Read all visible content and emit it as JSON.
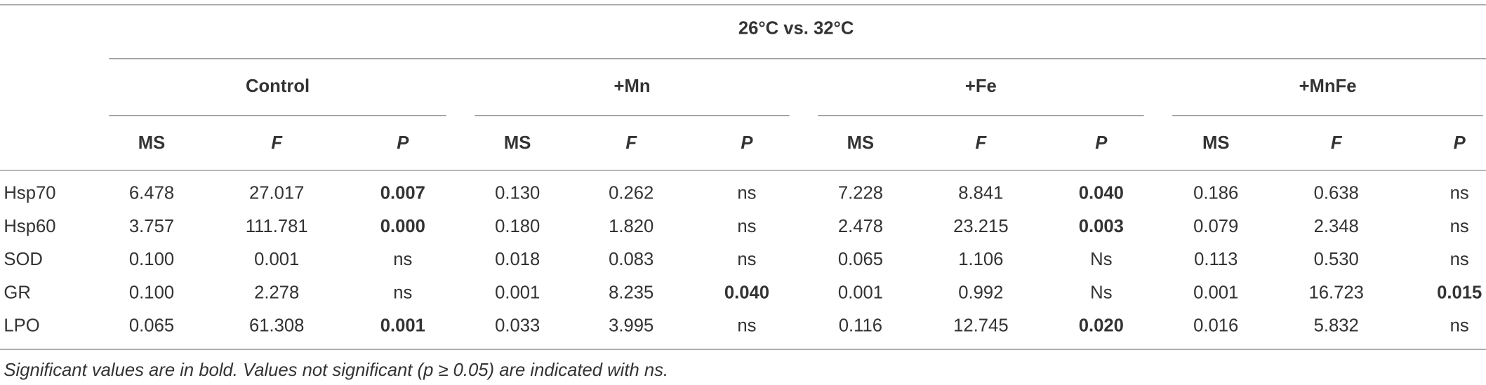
{
  "header": {
    "title": "26°C vs. 32°C"
  },
  "table": {
    "groups": [
      "Control",
      "+Mn",
      "+Fe",
      "+MnFe"
    ],
    "subheaders": [
      "MS",
      "F",
      "P"
    ],
    "rows": [
      {
        "label": "Hsp70",
        "cells": [
          "6.478",
          "27.017",
          {
            "text": "0.007",
            "bold": true
          },
          "0.130",
          "0.262",
          "ns",
          "7.228",
          "8.841",
          {
            "text": "0.040",
            "bold": true
          },
          "0.186",
          "0.638",
          "ns"
        ]
      },
      {
        "label": "Hsp60",
        "cells": [
          "3.757",
          "111.781",
          {
            "text": "0.000",
            "bold": true
          },
          "0.180",
          "1.820",
          "ns",
          "2.478",
          "23.215",
          {
            "text": "0.003",
            "bold": true
          },
          "0.079",
          "2.348",
          "ns"
        ]
      },
      {
        "label": "SOD",
        "cells": [
          "0.100",
          "0.001",
          "ns",
          "0.018",
          "0.083",
          "ns",
          "0.065",
          "1.106",
          "Ns",
          "0.113",
          "0.530",
          "ns"
        ]
      },
      {
        "label": "GR",
        "cells": [
          "0.100",
          "2.278",
          "ns",
          "0.001",
          "8.235",
          {
            "text": "0.040",
            "bold": true
          },
          "0.001",
          "0.992",
          "Ns",
          "0.001",
          "16.723",
          {
            "text": "0.015",
            "bold": true
          }
        ]
      },
      {
        "label": "LPO",
        "cells": [
          "0.065",
          "61.308",
          {
            "text": "0.001",
            "bold": true
          },
          "0.033",
          "3.995",
          "ns",
          "0.116",
          "12.745",
          {
            "text": "0.020",
            "bold": true
          },
          "0.016",
          "5.832",
          "ns"
        ]
      }
    ]
  },
  "footnote": "Significant values are in bold. Values not significant (p ≥ 0.05) are indicated with ns."
}
